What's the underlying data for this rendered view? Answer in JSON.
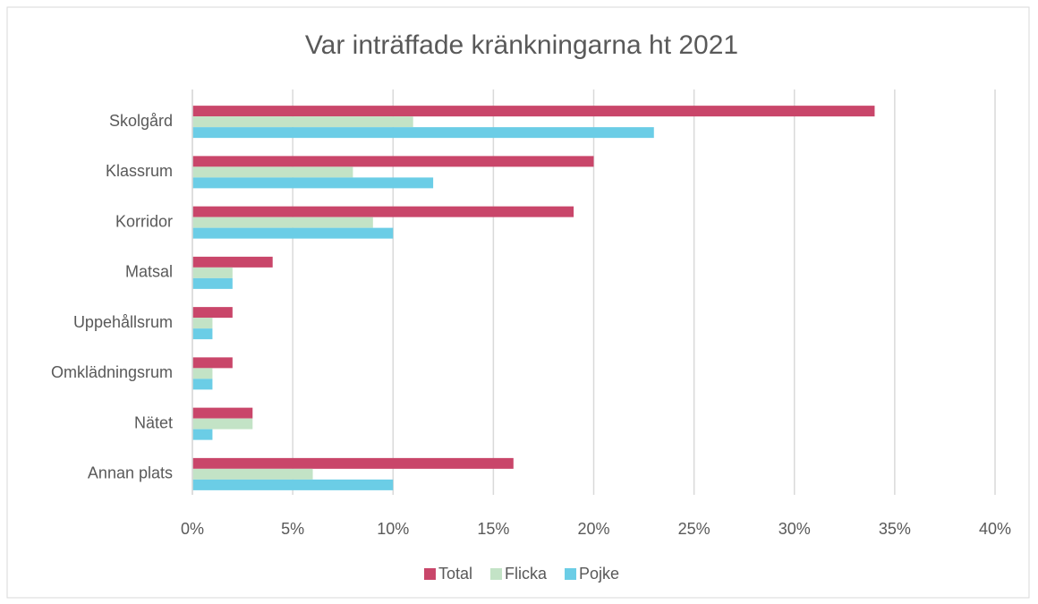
{
  "chart_data": {
    "type": "hbar",
    "title": "Var inträffade kränkningarna ht 2021",
    "categories": [
      "Skolgård",
      "Klassrum",
      "Korridor",
      "Matsal",
      "Uppehållsrum",
      "Omklädningsrum",
      "Nätet",
      "Annan plats"
    ],
    "series": [
      {
        "name": "Total",
        "color": "#c9466a",
        "values": [
          34,
          20,
          19,
          4,
          2,
          2,
          3,
          16
        ]
      },
      {
        "name": "Flicka",
        "color": "#c3e3c6",
        "values": [
          11,
          8,
          9,
          2,
          1,
          1,
          3,
          6
        ]
      },
      {
        "name": "Pojke",
        "color": "#6bcde6",
        "values": [
          23,
          12,
          10,
          2,
          1,
          1,
          1,
          10
        ]
      }
    ],
    "xlim": [
      0,
      40
    ],
    "xticks": [
      {
        "value": 0,
        "label": "0%"
      },
      {
        "value": 5,
        "label": "5%"
      },
      {
        "value": 10,
        "label": "10%"
      },
      {
        "value": 15,
        "label": "15%"
      },
      {
        "value": 20,
        "label": "20%"
      },
      {
        "value": 25,
        "label": "25%"
      },
      {
        "value": 30,
        "label": "30%"
      },
      {
        "value": 35,
        "label": "35%"
      },
      {
        "value": 40,
        "label": "40%"
      }
    ],
    "grid": true,
    "legend": "bottom"
  }
}
